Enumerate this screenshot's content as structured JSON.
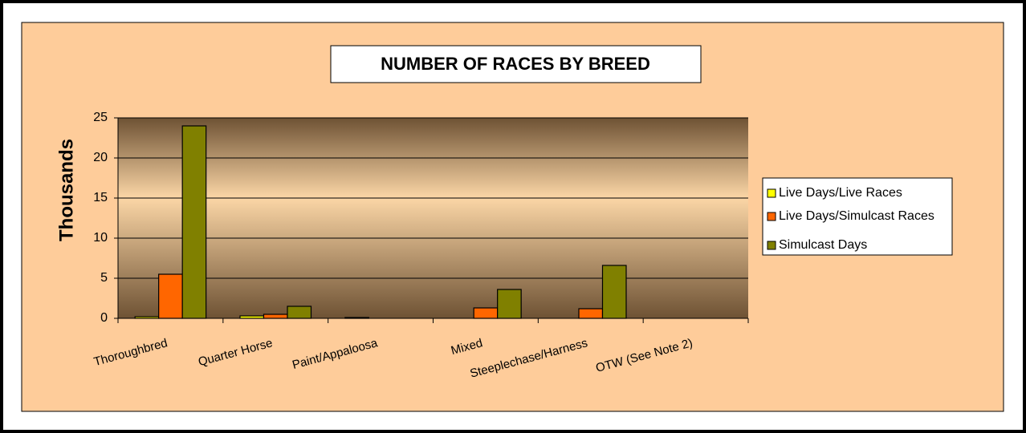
{
  "chart_data": {
    "type": "bar",
    "title": "NUMBER OF RACES BY BREED",
    "y_label": "Thousands",
    "categories": [
      "Thoroughbred",
      "Quarter Horse",
      "Paint/Appaloosa",
      "Mixed",
      "Steeplechase/Harness",
      "OTW (See Note 2)"
    ],
    "series": [
      {
        "name": "Live Days/Live Races",
        "color": "#ffff00",
        "values": [
          0.2,
          0.3,
          0.1,
          0,
          0,
          0
        ]
      },
      {
        "name": "Live Days/Simulcast Races",
        "color": "#ff6600",
        "values": [
          5.5,
          0.5,
          0,
          1.3,
          1.2,
          0
        ]
      },
      {
        "name": "Simulcast Days",
        "color": "#808000",
        "values": [
          24,
          1.5,
          0,
          3.6,
          6.6,
          0
        ]
      }
    ],
    "ylim": [
      0,
      25
    ],
    "yticks": [
      0,
      5,
      10,
      15,
      20,
      25
    ],
    "grid": true,
    "legend": "right"
  }
}
